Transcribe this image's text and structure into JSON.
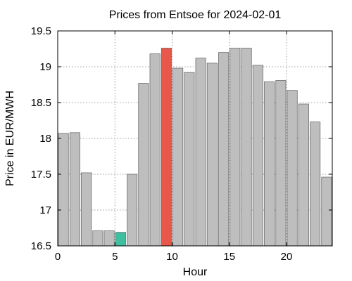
{
  "chart_data": {
    "type": "bar",
    "title": "Prices from Entsoe for 2024-02-01",
    "xlabel": "Hour",
    "ylabel": "Price in EUR/MWH",
    "x": [
      0,
      1,
      2,
      3,
      4,
      5,
      6,
      7,
      8,
      9,
      10,
      11,
      12,
      13,
      14,
      15,
      16,
      17,
      18,
      19,
      20,
      21,
      22,
      23
    ],
    "values": [
      18.07,
      18.08,
      17.52,
      16.71,
      16.71,
      16.69,
      17.5,
      18.77,
      19.18,
      19.26,
      18.98,
      18.92,
      19.12,
      19.05,
      19.2,
      19.26,
      19.26,
      19.02,
      18.79,
      18.81,
      18.67,
      18.48,
      18.23,
      17.46
    ],
    "xlim": [
      0,
      24
    ],
    "ylim": [
      16.5,
      19.5
    ],
    "xticks": [
      "0",
      "5",
      "10",
      "15",
      "20"
    ],
    "yticks": [
      "16.5",
      "17",
      "17.5",
      "18",
      "18.5",
      "19",
      "19.5"
    ],
    "grid": true,
    "bar_color": "#bebebe",
    "min_bar_color": "#3fbf9f",
    "max_bar_color": "#e9574b",
    "min_hour": 5,
    "max_hour": 9
  }
}
